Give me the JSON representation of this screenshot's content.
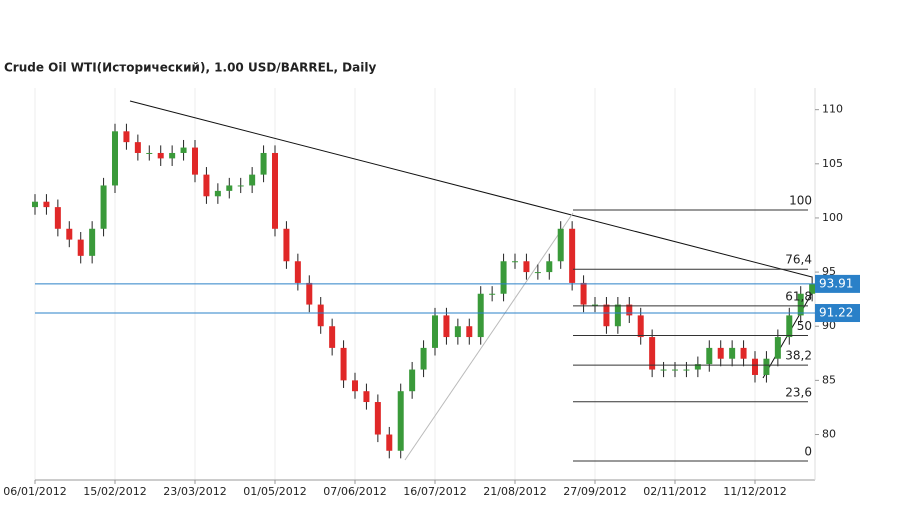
{
  "chart_data": {
    "type": "candlestick",
    "title": "Crude Oil WTI(Исторический), 1.00 USD/BARREL, Daily",
    "x": [
      0,
      4,
      8,
      12,
      16,
      20,
      24,
      28,
      32,
      36,
      40,
      44,
      48,
      52,
      56,
      60,
      64,
      68,
      72,
      76,
      80,
      84,
      88,
      92,
      96,
      100,
      104,
      108,
      112,
      116,
      120,
      124,
      128,
      132,
      136,
      140,
      144,
      148,
      152,
      156,
      160,
      164,
      168,
      172,
      176,
      180,
      184,
      188,
      192,
      196,
      200,
      204,
      208,
      212,
      216,
      220,
      224,
      228,
      232,
      236,
      240,
      244,
      248,
      252,
      256,
      260,
      264,
      268,
      272
    ],
    "open": [
      101,
      101.5,
      101,
      99,
      98,
      96.5,
      99,
      103,
      108,
      107,
      106,
      106,
      105.5,
      106,
      106.5,
      104,
      102,
      102.5,
      103,
      103,
      104,
      106,
      99,
      96,
      94,
      92,
      90,
      88,
      85,
      84,
      83,
      80,
      78.5,
      84,
      86,
      88,
      91,
      89,
      90,
      89,
      93,
      93,
      96,
      96,
      95,
      95,
      96,
      99,
      94,
      92,
      92,
      90,
      92,
      91,
      89,
      86,
      86,
      86,
      86,
      86.5,
      88,
      87,
      88,
      87,
      85.5,
      87,
      89,
      91,
      93
    ],
    "high": [
      102.2,
      102.2,
      101.7,
      99.7,
      98.7,
      99.7,
      103.7,
      108.7,
      108.7,
      107.7,
      106.7,
      106.7,
      106.7,
      107.2,
      107.2,
      104.7,
      103.2,
      103.7,
      103.7,
      104.7,
      106.7,
      106.7,
      99.7,
      96.7,
      94.7,
      92.7,
      90.7,
      88.7,
      85.7,
      84.7,
      83.7,
      80.7,
      84.7,
      86.7,
      88.7,
      91.7,
      91.7,
      90.7,
      90.7,
      93.7,
      93.7,
      96.7,
      96.7,
      96.7,
      95.7,
      96.7,
      99.7,
      99.7,
      94.7,
      92.7,
      92.7,
      92.7,
      92.7,
      91.7,
      89.7,
      86.7,
      86.7,
      86.7,
      87.2,
      88.7,
      88.7,
      88.7,
      88.7,
      87.7,
      87.7,
      89.7,
      91.7,
      93.7,
      94.6
    ],
    "low": [
      100.3,
      100.3,
      98.3,
      97.3,
      95.8,
      95.8,
      98.3,
      102.3,
      106.3,
      105.3,
      105.3,
      104.8,
      104.8,
      105.3,
      103.3,
      101.3,
      101.3,
      101.8,
      102.3,
      102.3,
      103.3,
      98.3,
      95.3,
      93.3,
      91.3,
      89.3,
      87.3,
      84.3,
      83.3,
      82.3,
      79.3,
      77.8,
      77.8,
      83.3,
      85.3,
      87.3,
      88.3,
      88.3,
      88.3,
      88.3,
      92.3,
      92.3,
      95.3,
      94.3,
      94.3,
      94.3,
      95.3,
      93.3,
      91.3,
      91.3,
      89.3,
      89.3,
      90.3,
      88.3,
      85.3,
      85.3,
      85.3,
      85.3,
      85.3,
      85.8,
      86.3,
      86.3,
      86.3,
      84.8,
      84.8,
      86.3,
      88.3,
      90.3,
      92.3
    ],
    "close": [
      101.5,
      101,
      99,
      98,
      96.5,
      99,
      103,
      108,
      107,
      106,
      106,
      105.5,
      106,
      106.5,
      104,
      102,
      102.5,
      103,
      103,
      104,
      106,
      99,
      96,
      94,
      92,
      90,
      88,
      85,
      84,
      83,
      80,
      78.5,
      84,
      86,
      88,
      91,
      89,
      90,
      89,
      93,
      93,
      96,
      96,
      95,
      95,
      96,
      99,
      94,
      92,
      92,
      90,
      92,
      91,
      89,
      86,
      86,
      86,
      86,
      86.5,
      88,
      87,
      88,
      87,
      85.5,
      87,
      89,
      91,
      93,
      93.9
    ],
    "up_color": "#3a9a3a",
    "down_color": "#e02828",
    "xlim": [
      0,
      273
    ],
    "xticks": [
      {
        "value": 0,
        "label": "06/01/2012"
      },
      {
        "value": 28,
        "label": "15/02/2012"
      },
      {
        "value": 56,
        "label": "23/03/2012"
      },
      {
        "value": 84,
        "label": "01/05/2012"
      },
      {
        "value": 112,
        "label": "07/06/2012"
      },
      {
        "value": 140,
        "label": "16/07/2012"
      },
      {
        "value": 168,
        "label": "21/08/2012"
      },
      {
        "value": 196,
        "label": "27/09/2012"
      },
      {
        "value": 224,
        "label": "02/11/2012"
      },
      {
        "value": 252,
        "label": "11/12/2012"
      }
    ],
    "ylim": [
      75.8,
      112
    ],
    "yticks": [
      80,
      85,
      90,
      95,
      100,
      105,
      110
    ],
    "grid": true,
    "price_lines": [
      {
        "value": 93.91,
        "label": "93.91"
      },
      {
        "value": 91.22,
        "label": "91.22"
      }
    ],
    "price_line_color": "#2a80c8",
    "fib_levels": [
      {
        "value": 100,
        "label": "100"
      },
      {
        "value": 76.4,
        "label": "76,4"
      },
      {
        "value": 61.8,
        "label": "61,8"
      },
      {
        "value": 50,
        "label": "50"
      },
      {
        "value": 38.2,
        "label": "38,2"
      },
      {
        "value": 23.6,
        "label": "23,6"
      },
      {
        "value": 0,
        "label": "0"
      }
    ]
  }
}
